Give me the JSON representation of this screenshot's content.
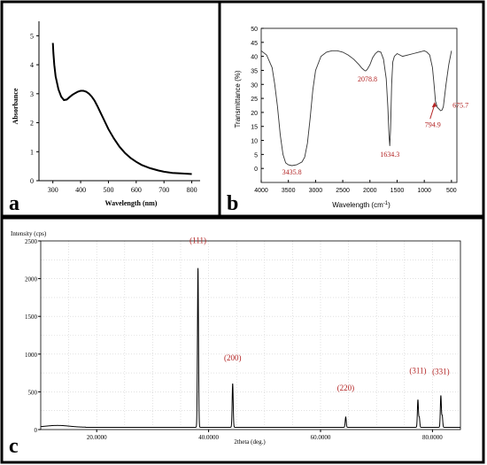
{
  "panels": {
    "a": {
      "letter": "a"
    },
    "b": {
      "letter": "b"
    },
    "c": {
      "letter": "c"
    }
  },
  "chart_data": [
    {
      "type": "line",
      "panel": "a",
      "xlabel": "Wavelength (nm)",
      "ylabel": "Absorbance",
      "xlim": [
        250,
        830
      ],
      "ylim": [
        0,
        5.5
      ],
      "xticks": [
        300,
        400,
        500,
        600,
        700,
        800
      ],
      "yticks": [
        0,
        1,
        2,
        3,
        4,
        5
      ],
      "color": "#000000",
      "x": [
        300,
        302,
        305,
        310,
        320,
        330,
        340,
        350,
        360,
        370,
        380,
        390,
        400,
        410,
        420,
        430,
        440,
        450,
        460,
        470,
        480,
        490,
        500,
        520,
        540,
        560,
        580,
        600,
        620,
        650,
        680,
        700,
        730,
        760,
        800
      ],
      "y": [
        4.75,
        4.4,
        4.0,
        3.6,
        3.15,
        2.9,
        2.78,
        2.8,
        2.88,
        2.96,
        3.02,
        3.07,
        3.1,
        3.1,
        3.07,
        3.0,
        2.9,
        2.76,
        2.58,
        2.38,
        2.18,
        1.98,
        1.78,
        1.45,
        1.17,
        0.95,
        0.78,
        0.65,
        0.54,
        0.43,
        0.35,
        0.31,
        0.27,
        0.25,
        0.23
      ]
    },
    {
      "type": "line",
      "panel": "b",
      "xlabel": "Wavelength (cm",
      "xlabel_sup": "-1",
      "xlabel_end": ")",
      "ylabel": "Transmittance (%)",
      "xlim": [
        4000,
        400
      ],
      "ylim": [
        -5,
        50
      ],
      "xticks": [
        4000,
        3500,
        3000,
        2500,
        2000,
        1500,
        1000,
        500
      ],
      "yticks": [
        0,
        5,
        10,
        15,
        20,
        25,
        30,
        35,
        40,
        45,
        50
      ],
      "color": "#333333",
      "x": [
        4000,
        3900,
        3800,
        3750,
        3700,
        3650,
        3600,
        3550,
        3500,
        3435.8,
        3350,
        3250,
        3200,
        3150,
        3100,
        3050,
        3000,
        2900,
        2800,
        2700,
        2600,
        2500,
        2400,
        2300,
        2200,
        2150,
        2100,
        2078.8,
        2050,
        2000,
        1950,
        1900,
        1850,
        1800,
        1750,
        1700,
        1670,
        1650,
        1634.3,
        1620,
        1600,
        1580,
        1550,
        1500,
        1400,
        1300,
        1200,
        1100,
        1000,
        950,
        900,
        850,
        820,
        794.9,
        760,
        720,
        700,
        675.7,
        650,
        600,
        550,
        500
      ],
      "y": [
        42,
        40.5,
        36,
        30,
        22,
        12,
        5,
        2,
        1.3,
        1,
        1.3,
        2.3,
        4,
        9,
        18,
        28,
        35,
        40,
        41.5,
        42,
        42,
        41.5,
        40.5,
        39,
        37,
        35.8,
        35,
        34.8,
        35.3,
        37,
        39.5,
        41,
        41.8,
        41.5,
        39,
        32,
        22,
        12,
        8,
        14,
        30,
        38,
        40,
        41,
        40,
        40.5,
        41,
        41.5,
        42,
        41.5,
        40.5,
        36,
        30,
        24,
        21.8,
        21,
        20.6,
        20.8,
        22,
        30,
        37,
        42
      ],
      "annotations": [
        {
          "label": "3435.8",
          "x": 3435.8,
          "y": 1.0,
          "color": "#b22222"
        },
        {
          "label": "2078.8",
          "x": 2078.8,
          "y": 34.8,
          "color": "#b22222"
        },
        {
          "label": "1634.3",
          "x": 1634.3,
          "y": 8.0,
          "color": "#b22222"
        },
        {
          "label": "794.9",
          "x": 794.9,
          "y": 24.0,
          "color": "#b22222"
        },
        {
          "label": "675.7",
          "x": 675.7,
          "y": 20.8,
          "color": "#b22222"
        }
      ]
    },
    {
      "type": "line",
      "panel": "c",
      "xlabel": "2theta (deg.)",
      "ylabel": "Intensity (cps)",
      "xlim": [
        10,
        85
      ],
      "ylim": [
        0,
        2500
      ],
      "xticks": [
        20,
        40,
        60,
        80
      ],
      "xtick_labels": [
        "20.0000",
        "40.0000",
        "60.0000",
        "80.0000"
      ],
      "yticks": [
        0,
        500,
        1000,
        1500,
        2000,
        2500
      ],
      "grid": true,
      "color": "#000000",
      "baseline": 30,
      "peaks": [
        {
          "label": "(111)",
          "x": 38.1,
          "y": 2140
        },
        {
          "label": "(200)",
          "x": 44.3,
          "y": 610
        },
        {
          "label": "(220)",
          "x": 64.5,
          "y": 165
        },
        {
          "label": "(311)",
          "x": 77.4,
          "y": 395
        },
        {
          "label": "(331)",
          "x": 81.5,
          "y": 450
        }
      ],
      "annotation_color": "#b22222"
    }
  ]
}
